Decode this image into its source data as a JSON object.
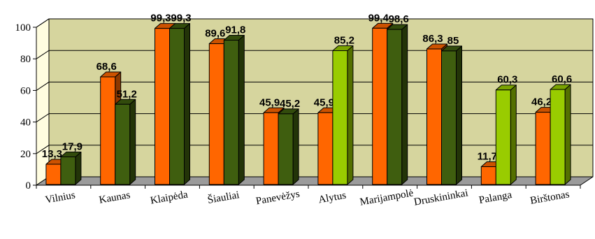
{
  "chart_data": {
    "type": "bar",
    "categories": [
      "Vilnius",
      "Kaunas",
      "Klaipėda",
      "Šiauliai",
      "Panevėžys",
      "Alytus",
      "Marijampolė",
      "Druskininkai",
      "Palanga",
      "Birštonas"
    ],
    "series": [
      {
        "values": [
          13.3,
          68.6,
          99.3,
          89.6,
          45.9,
          45.9,
          99.4,
          86.3,
          11.7,
          46.2
        ],
        "labels": [
          "13,3",
          "68,6",
          "99,3",
          "89,6",
          "45,9",
          "45,9",
          "99,4",
          "86,3",
          "11,7",
          "46,2"
        ]
      },
      {
        "values": [
          17.9,
          51.2,
          99.3,
          91.8,
          45.2,
          85.2,
          98.6,
          85,
          60.3,
          60.6
        ],
        "labels": [
          "17,9",
          "51,2",
          "99,3",
          "91,8",
          "45,2",
          "85,2",
          "98,6",
          "85",
          "60,3",
          "60,6"
        ]
      }
    ],
    "yticks": [
      "0",
      "20",
      "40",
      "60",
      "80",
      "100"
    ],
    "ylim": [
      0,
      100
    ],
    "grid": true,
    "title": "",
    "xlabel": "",
    "ylabel": "",
    "legend": "none",
    "colors": {
      "series1": "#ff6600",
      "series2_dark": "#3f5e0f",
      "series2_light": "#99cc00",
      "plot_background": "#d6d59e",
      "floor": "#9b9b9b"
    },
    "light_green_categories": [
      "Alytus",
      "Palanga",
      "Birštonas"
    ]
  }
}
